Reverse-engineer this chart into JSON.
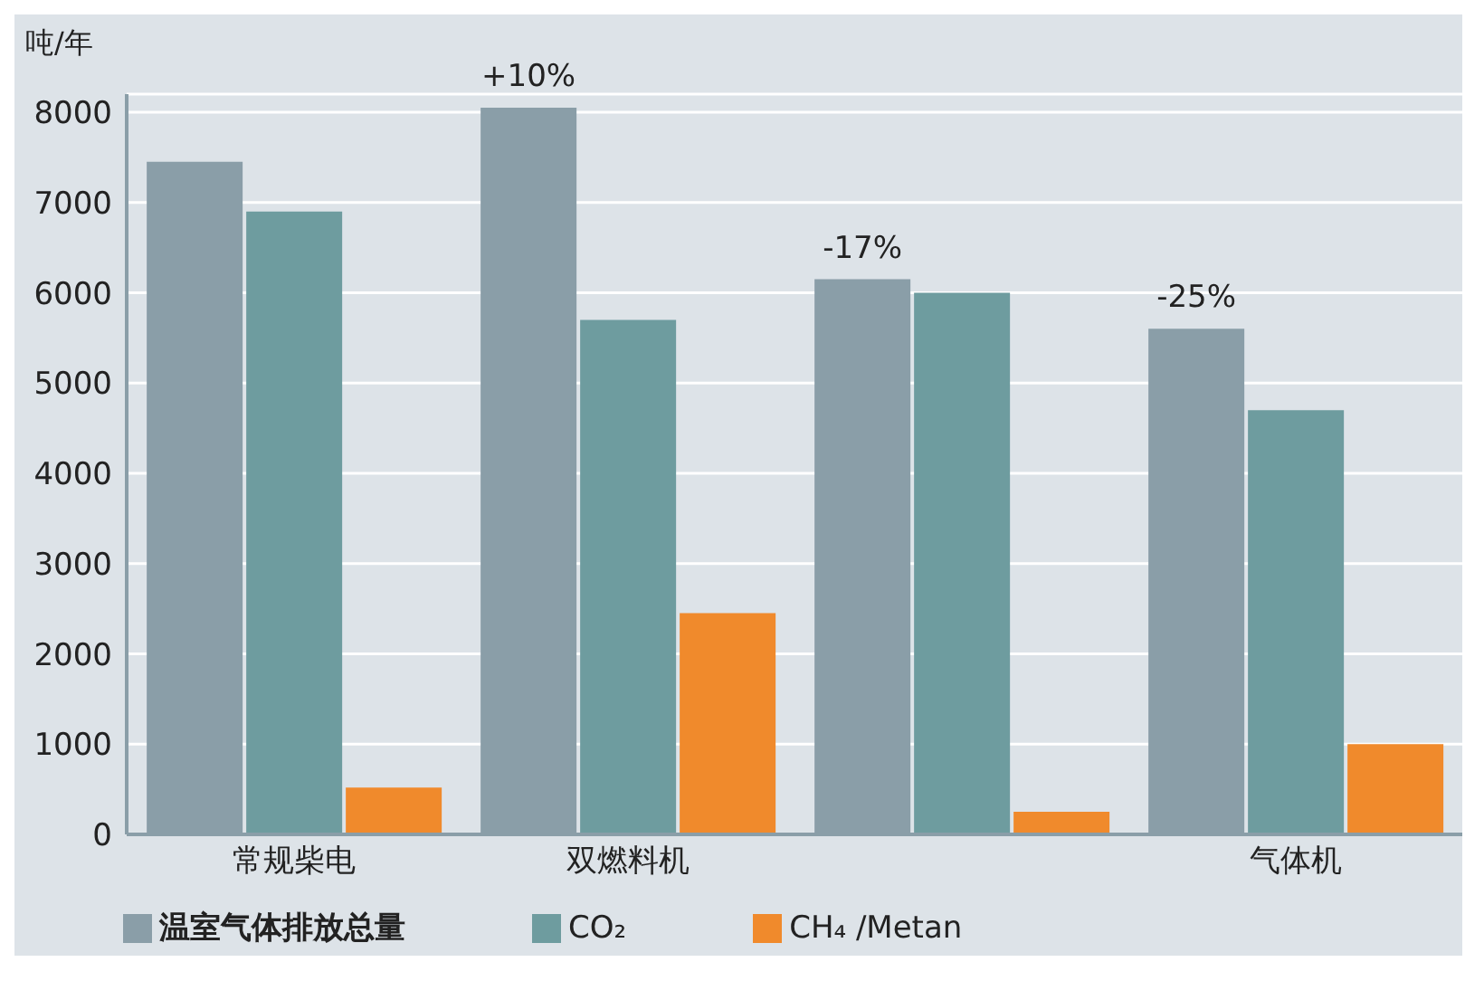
{
  "chart_data": {
    "type": "bar",
    "ylabel": "吨/年",
    "categories": [
      "常规柴电",
      "双燃料机",
      null,
      "气体机"
    ],
    "series": [
      {
        "name": "温室气体排放总量",
        "color": "#8a9ea8",
        "values": [
          7450,
          8050,
          6150,
          5600
        ]
      },
      {
        "name": "CO₂",
        "color": "#6e9c9f",
        "values": [
          6900,
          5700,
          6000,
          4700
        ]
      },
      {
        "name": "CH₄ /Metan",
        "color": "#f08a2c",
        "values": [
          520,
          2450,
          250,
          1000
        ]
      }
    ],
    "annotations": [
      "+10%",
      "-17%",
      "-25%"
    ],
    "ylim": [
      0,
      8200
    ],
    "yticks": [
      0,
      1000,
      2000,
      3000,
      4000,
      5000,
      6000,
      7000,
      8000
    ],
    "grid": "y",
    "legend": "bottom left"
  }
}
